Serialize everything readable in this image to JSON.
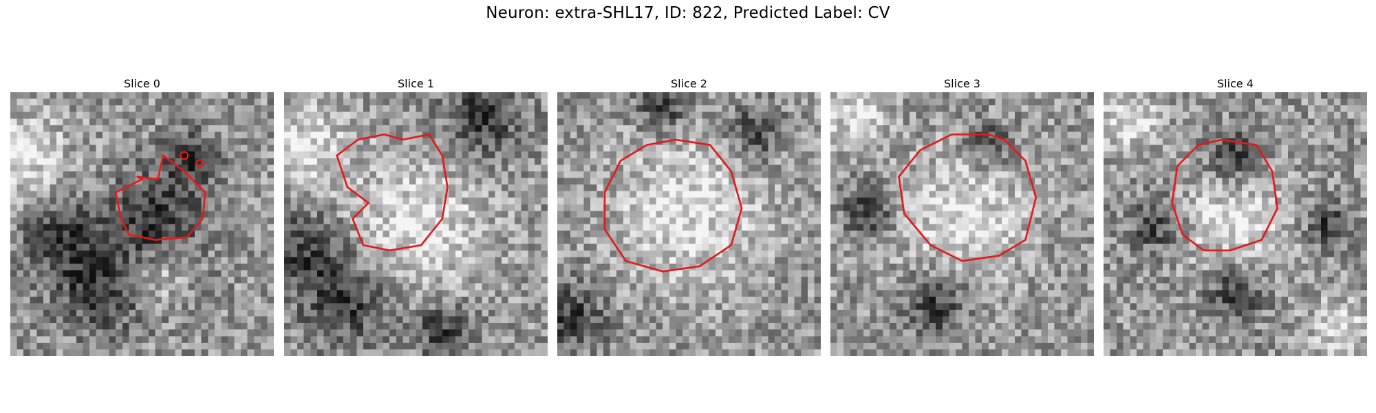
{
  "figure": {
    "title": "Neuron: extra-SHL17, ID: 822, Predicted Label: CV"
  },
  "panels": [
    {
      "label": "Slice 0",
      "seed": 11,
      "dark": [
        [
          0.55,
          0.48,
          0.22
        ],
        [
          0.2,
          0.55,
          0.18
        ],
        [
          0.35,
          0.75,
          0.2
        ],
        [
          0.68,
          0.25,
          0.12
        ]
      ],
      "bright": [
        [
          0.05,
          0.25,
          0.18
        ],
        [
          0.55,
          0.7,
          0.1
        ]
      ],
      "contour": [
        [
          50,
          33
        ],
        [
          40,
          38
        ],
        [
          42,
          48
        ],
        [
          45,
          54
        ],
        [
          55,
          56
        ],
        [
          67,
          55
        ],
        [
          73,
          48
        ],
        [
          74,
          38
        ],
        [
          66,
          30
        ],
        [
          58,
          24
        ],
        [
          56,
          33
        ],
        [
          48,
          32
        ]
      ],
      "markers": [
        [
          66,
          24
        ],
        [
          72,
          27
        ]
      ]
    },
    {
      "label": "Slice 1",
      "seed": 23,
      "dark": [
        [
          0.75,
          0.1,
          0.18
        ],
        [
          0.08,
          0.6,
          0.18
        ],
        [
          0.25,
          0.8,
          0.2
        ],
        [
          0.6,
          0.9,
          0.12
        ]
      ],
      "bright": [
        [
          0.5,
          0.5,
          0.28
        ],
        [
          0.1,
          0.2,
          0.15
        ]
      ],
      "contour": [
        [
          145,
          18
        ],
        [
          155,
          16
        ],
        [
          160,
          24
        ],
        [
          162,
          36
        ],
        [
          160,
          48
        ],
        [
          152,
          58
        ],
        [
          140,
          60
        ],
        [
          130,
          58
        ],
        [
          126,
          48
        ],
        [
          132,
          42
        ],
        [
          124,
          36
        ],
        [
          120,
          24
        ],
        [
          128,
          18
        ],
        [
          138,
          16
        ]
      ],
      "markers": []
    },
    {
      "label": "Slice 2",
      "seed": 37,
      "dark": [
        [
          0.05,
          0.85,
          0.15
        ],
        [
          0.4,
          0.05,
          0.12
        ],
        [
          0.75,
          0.15,
          0.12
        ]
      ],
      "bright": [
        [
          0.5,
          0.45,
          0.3
        ]
      ],
      "contour": [
        [
          245,
          18
        ],
        [
          258,
          20
        ],
        [
          266,
          30
        ],
        [
          270,
          44
        ],
        [
          266,
          58
        ],
        [
          254,
          66
        ],
        [
          240,
          68
        ],
        [
          226,
          64
        ],
        [
          218,
          52
        ],
        [
          218,
          38
        ],
        [
          224,
          26
        ],
        [
          234,
          20
        ]
      ],
      "markers": []
    },
    {
      "label": "Slice 3",
      "seed": 51,
      "dark": [
        [
          0.15,
          0.45,
          0.12
        ],
        [
          0.4,
          0.8,
          0.15
        ],
        [
          0.6,
          0.2,
          0.1
        ]
      ],
      "bright": [
        [
          0.5,
          0.48,
          0.26
        ],
        [
          0.1,
          0.1,
          0.12
        ]
      ],
      "contour": [
        [
          360,
          16
        ],
        [
          366,
          18
        ],
        [
          374,
          26
        ],
        [
          378,
          40
        ],
        [
          374,
          56
        ],
        [
          364,
          62
        ],
        [
          350,
          64
        ],
        [
          338,
          58
        ],
        [
          328,
          46
        ],
        [
          326,
          32
        ],
        [
          334,
          22
        ],
        [
          346,
          16
        ]
      ],
      "markers": []
    },
    {
      "label": "Slice 4",
      "seed": 67,
      "dark": [
        [
          0.5,
          0.25,
          0.12
        ],
        [
          0.2,
          0.5,
          0.12
        ],
        [
          0.5,
          0.75,
          0.14
        ],
        [
          0.85,
          0.5,
          0.1
        ]
      ],
      "bright": [
        [
          0.5,
          0.5,
          0.22
        ],
        [
          0.1,
          0.1,
          0.12
        ],
        [
          0.9,
          0.9,
          0.12
        ]
      ],
      "contour": [
        [
          445,
          18
        ],
        [
          458,
          20
        ],
        [
          464,
          30
        ],
        [
          466,
          44
        ],
        [
          460,
          56
        ],
        [
          448,
          60
        ],
        [
          438,
          60
        ],
        [
          430,
          54
        ],
        [
          426,
          42
        ],
        [
          428,
          28
        ],
        [
          436,
          20
        ]
      ],
      "markers": []
    }
  ]
}
